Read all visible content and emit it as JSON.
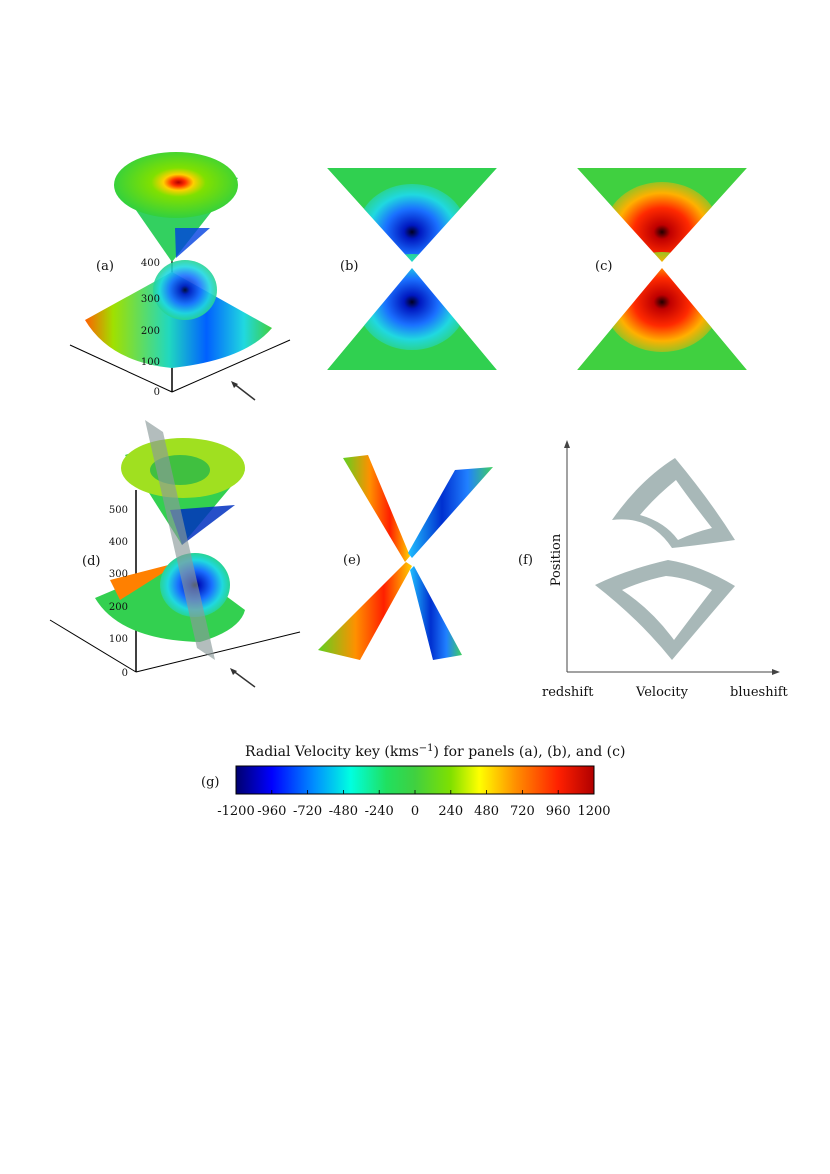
{
  "panels": {
    "a": {
      "label": "(a)",
      "z_ticks": [
        "0",
        "100",
        "200",
        "300",
        "400"
      ]
    },
    "b": {
      "label": "(b)"
    },
    "c": {
      "label": "(c)"
    },
    "d": {
      "label": "(d)",
      "z_ticks": [
        "0",
        "100",
        "200",
        "300",
        "400",
        "500"
      ]
    },
    "e": {
      "label": "(e)"
    },
    "f": {
      "label": "(f)",
      "ylabel": "Position",
      "x_left": "redshift",
      "x_mid": "Velocity",
      "x_right": "blueshift"
    },
    "g": {
      "label": "(g)"
    }
  },
  "colorkey": {
    "title_pre": "Radial Velocity key (kms",
    "title_sup": "−1",
    "title_post": ") for panels (a), (b), and (c)",
    "ticks": [
      "-1200",
      "-960",
      "-720",
      "-480",
      "-240",
      "0",
      "240",
      "480",
      "720",
      "960",
      "1200"
    ],
    "colors": [
      "#00006e",
      "#0000ff",
      "#0090ff",
      "#00ffe0",
      "#20e060",
      "#40d040",
      "#80e000",
      "#ffff00",
      "#ff9000",
      "#ff2000",
      "#b00000"
    ]
  },
  "chart_data": {
    "type": "heatmap",
    "title": "Radial Velocity key (kms−1) for panels (a), (b), and (c)",
    "colorbar_range": [
      -1200,
      1200
    ],
    "colorbar_ticks": [
      -1200,
      -960,
      -720,
      -480,
      -240,
      0,
      240,
      480,
      720,
      960,
      1200
    ]
  }
}
